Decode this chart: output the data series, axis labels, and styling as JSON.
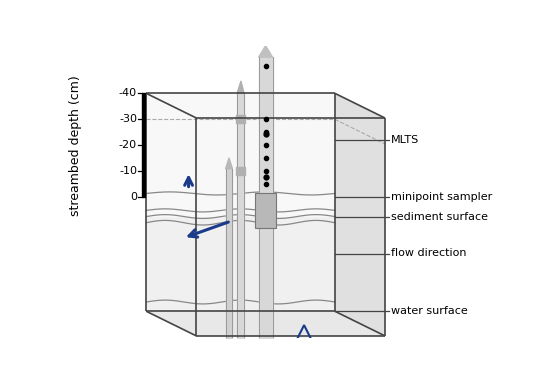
{
  "ylabel": "streambed depth (cm)",
  "background_color": "#ffffff",
  "box_line_color": "#444444",
  "arrow_color": "#1a3a8a",
  "tube_fill": "#d8d8d8",
  "tube_edge": "#999999",
  "sensor_fill": "#b8b8b8",
  "sensor_edge": "#777777",
  "wave_color": "#888888",
  "ann_line_color": "#555555",
  "dashed_color": "#aaaaaa",
  "annotations": {
    "water_surface": "water surface",
    "flow_direction": "flow direction",
    "sediment_surface": "sediment surface",
    "minipoint_sampler": "minipoint sampler",
    "mlts": "MLTS"
  },
  "yticks": [
    0,
    -10,
    -20,
    -30,
    -40
  ],
  "ann_font_size": 8.0,
  "ylabel_font_size": 9.0,
  "tick_font_size": 8.0
}
